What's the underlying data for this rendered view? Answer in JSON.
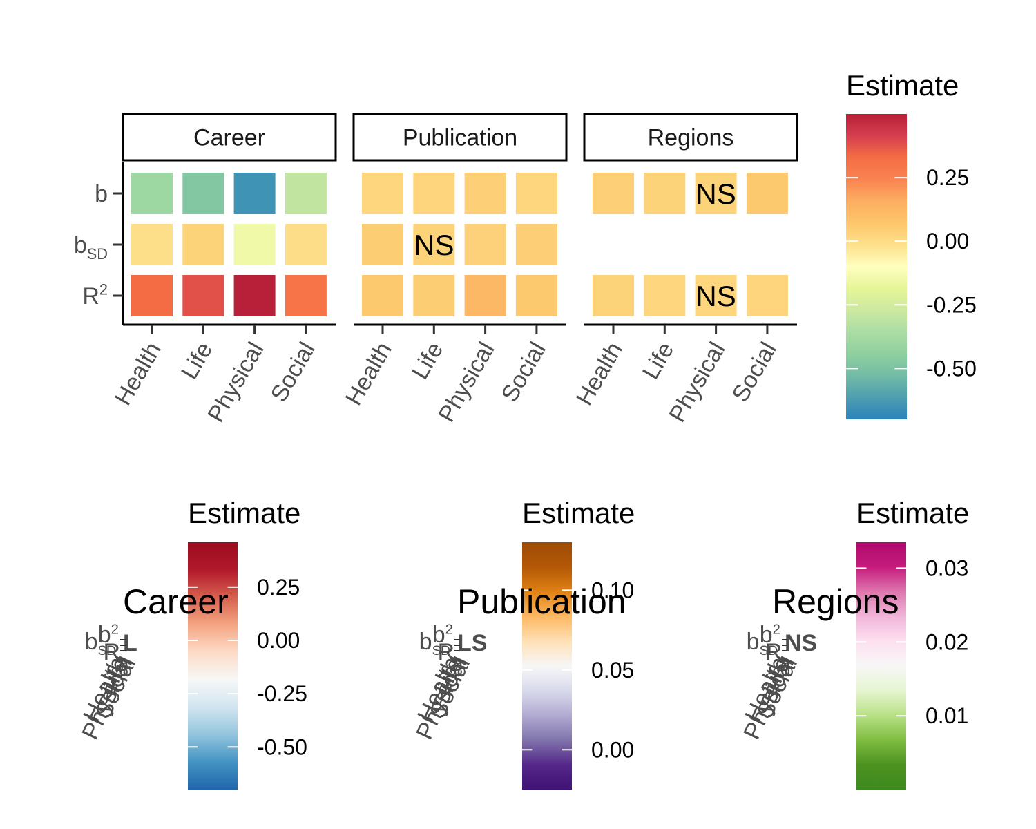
{
  "chart_data": {
    "type": "heatmap",
    "main_plot": {
      "facets": [
        "Career",
        "Publication",
        "Regions"
      ],
      "x_categories": [
        "Health",
        "Life",
        "Physical",
        "Social"
      ],
      "y_categories": [
        "b",
        "b_SD",
        "R^2"
      ],
      "y_labels": [
        {
          "base": "b",
          "sub": "",
          "sup": ""
        },
        {
          "base": "b",
          "sub": "SD",
          "sup": ""
        },
        {
          "base": "R",
          "sub": "",
          "sup": "2"
        }
      ],
      "cells": [
        {
          "facet": "Career",
          "row": "b",
          "values": [
            -0.4,
            -0.48,
            -0.65,
            -0.3
          ],
          "ns": [
            false,
            false,
            false,
            false
          ]
        },
        {
          "facet": "Career",
          "row": "b_SD",
          "values": [
            -0.01,
            0.03,
            -0.15,
            -0.005
          ],
          "ns": [
            false,
            false,
            false,
            false
          ]
        },
        {
          "facet": "Career",
          "row": "R^2",
          "values": [
            0.33,
            0.38,
            0.5,
            0.3
          ],
          "ns": [
            false,
            false,
            false,
            false
          ]
        },
        {
          "facet": "Publication",
          "row": "b",
          "values": [
            0.02,
            0.025,
            0.04,
            0.02
          ],
          "ns": [
            false,
            false,
            false,
            false
          ]
        },
        {
          "facet": "Publication",
          "row": "b_SD",
          "values": [
            0.05,
            0.03,
            0.035,
            0.045
          ],
          "ns": [
            false,
            true,
            false,
            false
          ]
        },
        {
          "facet": "Publication",
          "row": "R^2",
          "values": [
            0.06,
            0.05,
            0.12,
            0.06
          ],
          "ns": [
            false,
            false,
            false,
            false
          ]
        },
        {
          "facet": "Regions",
          "row": "b",
          "values": [
            0.04,
            0.03,
            0.03,
            0.06
          ],
          "ns": [
            false,
            false,
            true,
            false
          ]
        },
        {
          "facet": "Regions",
          "row": "b_SD",
          "values": [
            null,
            null,
            null,
            null
          ],
          "ns": [
            false,
            false,
            false,
            false
          ]
        },
        {
          "facet": "Regions",
          "row": "R^2",
          "values": [
            0.03,
            0.02,
            0.02,
            0.025
          ],
          "ns": [
            false,
            false,
            true,
            false
          ]
        }
      ],
      "legend": {
        "title": "Estimate",
        "ticks": [
          0.25,
          0.0,
          -0.25,
          -0.5
        ],
        "tick_labels": [
          "0.25",
          "0.00",
          "-0.25",
          "-0.50"
        ],
        "range": [
          -0.7,
          0.5
        ],
        "palette": "Spectral",
        "colors": [
          "#2b83ba",
          "#4e9eb0",
          "#72bba5",
          "#8fd09f",
          "#abdda4",
          "#cce9a0",
          "#e6f598",
          "#ffffbf",
          "#fee08b",
          "#fdc66b",
          "#fdae61",
          "#f98352",
          "#f46d43",
          "#d53e4f",
          "#b81f38"
        ]
      },
      "ns_label": "NS"
    },
    "sub_plots": [
      {
        "title": "Career",
        "legend": {
          "title": "Estimate",
          "ticks": [
            0.25,
            0.0,
            -0.25,
            -0.5
          ],
          "tick_labels": [
            "0.25",
            "0.00",
            "-0.25",
            "-0.50"
          ],
          "range": [
            -0.7,
            0.46
          ],
          "palette": "RdBu",
          "colors": [
            "#2166ac",
            "#4393c3",
            "#92c5de",
            "#d1e5f0",
            "#f7f7f7",
            "#fddbc7",
            "#f4a582",
            "#d6604d",
            "#b2182b",
            "#9a0c1f"
          ]
        },
        "y_axis_text": [
          "b",
          "b_SD",
          "R^2"
        ],
        "x_axis_text": [
          "Health",
          "Life",
          "Physical",
          "Social"
        ],
        "overlap_text": "L"
      },
      {
        "title": "Publication",
        "legend": {
          "title": "Estimate",
          "ticks": [
            0.1,
            0.05,
            0.0
          ],
          "tick_labels": [
            "0.10",
            "0.05",
            "0.00"
          ],
          "range": [
            -0.025,
            0.13
          ],
          "palette": "PuOr",
          "colors": [
            "#3f1275",
            "#542788",
            "#8073ac",
            "#b2abd2",
            "#d8daeb",
            "#f7f7f7",
            "#fee0b6",
            "#fdb863",
            "#e08214",
            "#b35806",
            "#9e4c06"
          ]
        },
        "y_axis_text": [
          "b",
          "b_SD",
          "R^2"
        ],
        "x_axis_text": [
          "Health",
          "Life",
          "Physical",
          "Social"
        ],
        "overlap_text": "LS"
      },
      {
        "title": "Regions",
        "legend": {
          "title": "Estimate",
          "ticks": [
            0.03,
            0.02,
            0.01
          ],
          "tick_labels": [
            "0.03",
            "0.02",
            "0.01"
          ],
          "range": [
            0.0,
            0.0335
          ],
          "palette": "PiYG",
          "colors": [
            "#3d8a1f",
            "#4d9221",
            "#7fbc41",
            "#b8e186",
            "#e6f5d0",
            "#f7f7f7",
            "#fde0ef",
            "#f1b6da",
            "#de77ae",
            "#c51b7d",
            "#b0096d"
          ]
        },
        "y_axis_text": [
          "b",
          "b_SD",
          "R^2"
        ],
        "x_axis_text": [
          "Health",
          "Life",
          "Physical",
          "Social"
        ],
        "overlap_text": "NS"
      }
    ]
  }
}
